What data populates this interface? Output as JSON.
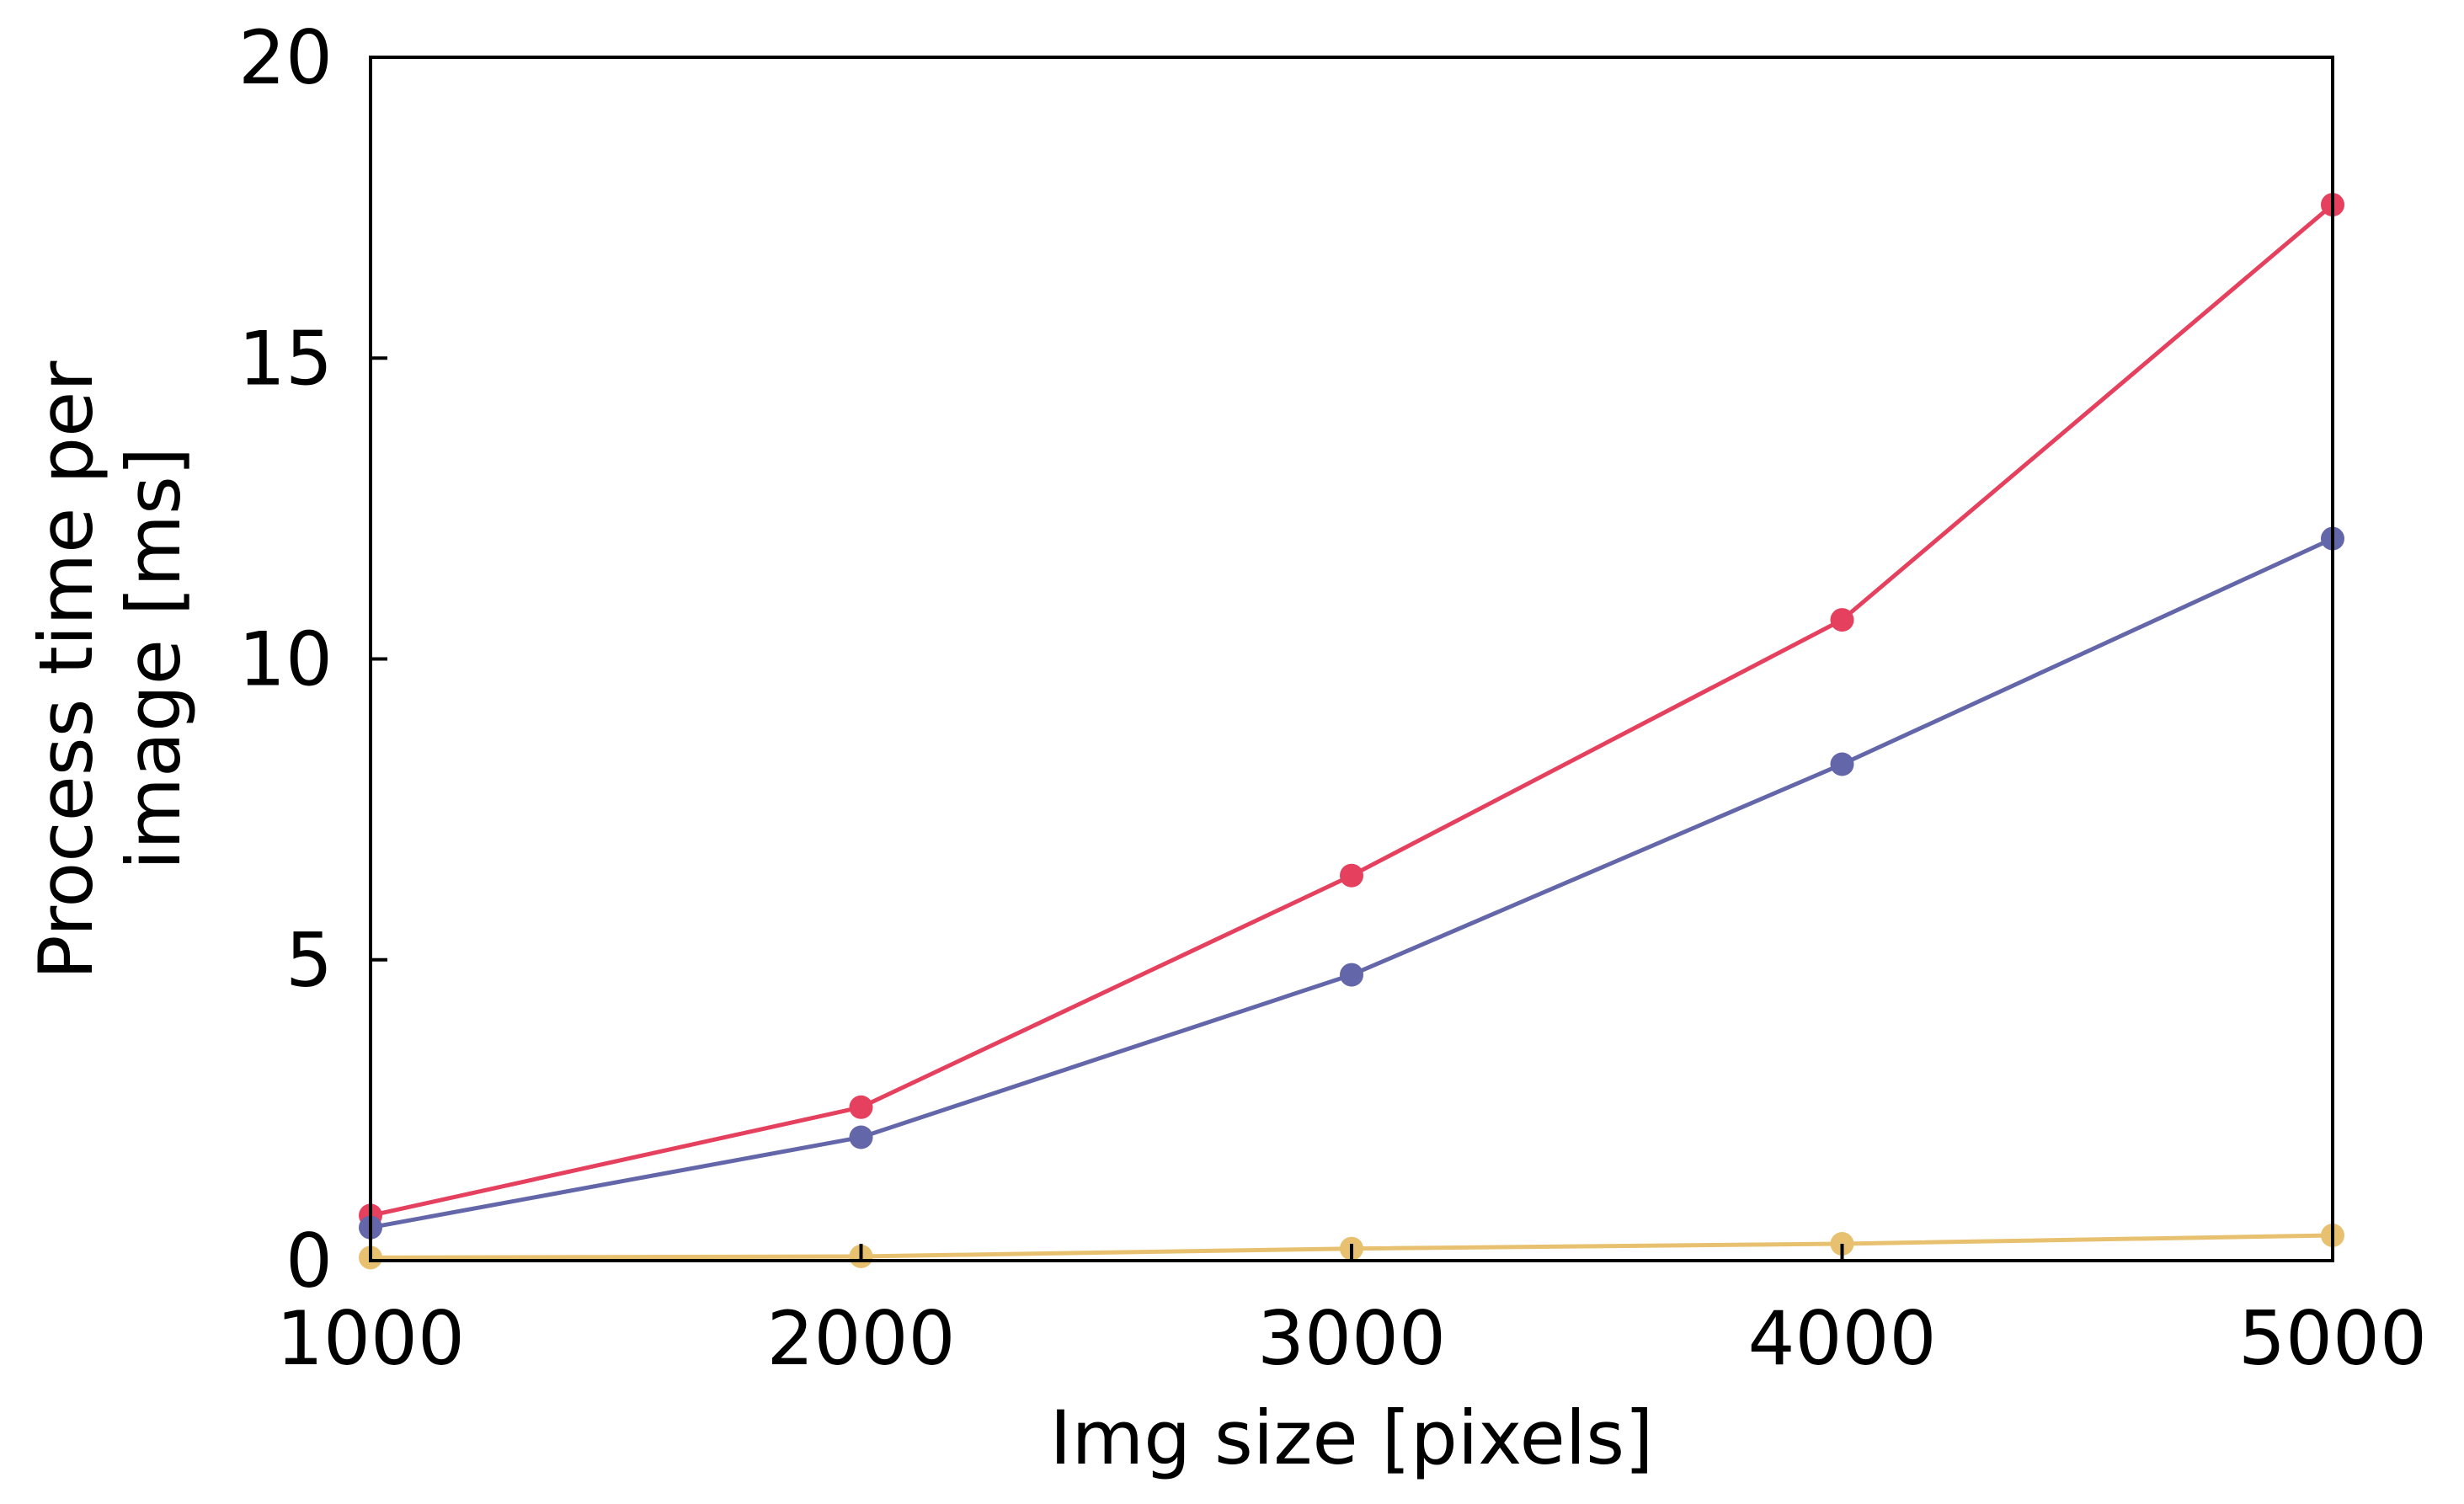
{
  "chart_data": {
    "type": "line",
    "title": "",
    "xlabel": "Img size [pixels]",
    "ylabel_lines": [
      "Process time per",
      "image [ms]"
    ],
    "x": [
      1000,
      2000,
      3000,
      4000,
      5000
    ],
    "xlim": [
      1000,
      5000
    ],
    "ylim": [
      0,
      20
    ],
    "x_ticks": [
      1000,
      2000,
      3000,
      4000,
      5000
    ],
    "y_ticks": [
      0,
      5,
      10,
      15,
      20
    ],
    "x_tick_labels": [
      "1000",
      "2000",
      "3000",
      "4000",
      "5000"
    ],
    "y_tick_labels": [
      "0",
      "5",
      "10",
      "15",
      "20"
    ],
    "grid": false,
    "legend": "none",
    "series": [
      {
        "color": "#e5405e",
        "values": [
          0.75,
          2.55,
          6.4,
          10.65,
          17.55
        ]
      },
      {
        "color": "#6366a8",
        "values": [
          0.55,
          2.05,
          4.75,
          8.25,
          12.0
        ]
      },
      {
        "color": "#e8c170",
        "values": [
          0.05,
          0.07,
          0.2,
          0.28,
          0.42
        ]
      }
    ]
  }
}
